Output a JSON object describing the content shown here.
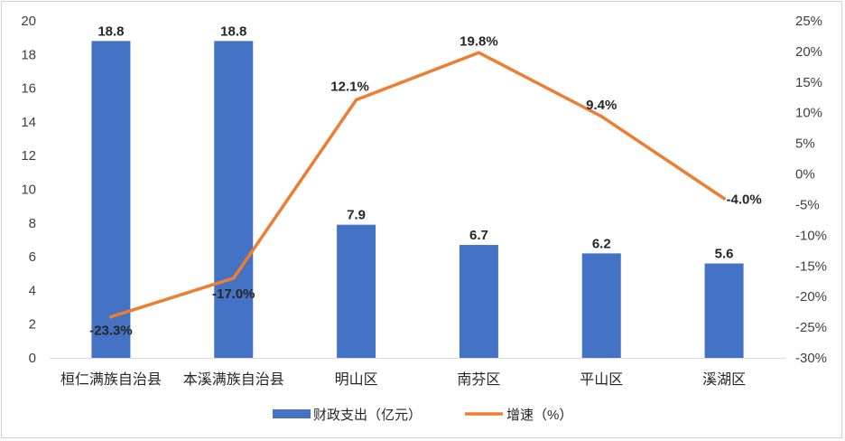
{
  "chart_data": {
    "type": "bar+line",
    "categories": [
      "桓仁满族自治县",
      "本溪满族自治县",
      "明山区",
      "南芬区",
      "平山区",
      "溪湖区"
    ],
    "series": [
      {
        "name": "财政支出（亿元）",
        "type": "bar",
        "axis": "left",
        "values": [
          18.8,
          18.8,
          7.9,
          6.7,
          6.2,
          5.6
        ],
        "labels": [
          "18.8",
          "18.8",
          "7.9",
          "6.7",
          "6.2",
          "5.6"
        ],
        "color": "#4472C4"
      },
      {
        "name": "增速（%）",
        "type": "line",
        "axis": "right",
        "values": [
          -23.3,
          -17.0,
          12.1,
          19.8,
          9.4,
          -4.0
        ],
        "labels": [
          "-23.3%",
          "-17.0%",
          "12.1%",
          "19.8%",
          "9.4%",
          "-4.0%"
        ],
        "color": "#ED7D31"
      }
    ],
    "y_left": {
      "ylim": [
        0,
        20
      ],
      "ticks": [
        "0",
        "2",
        "4",
        "6",
        "8",
        "10",
        "12",
        "14",
        "16",
        "18",
        "20"
      ]
    },
    "y_right": {
      "ylim": [
        -30,
        25
      ],
      "ticks": [
        "-30%",
        "-25%",
        "-20%",
        "-15%",
        "-10%",
        "-5%",
        "0%",
        "5%",
        "10%",
        "15%",
        "20%",
        "25%"
      ]
    },
    "grid": false,
    "legend": "bottom-center"
  }
}
